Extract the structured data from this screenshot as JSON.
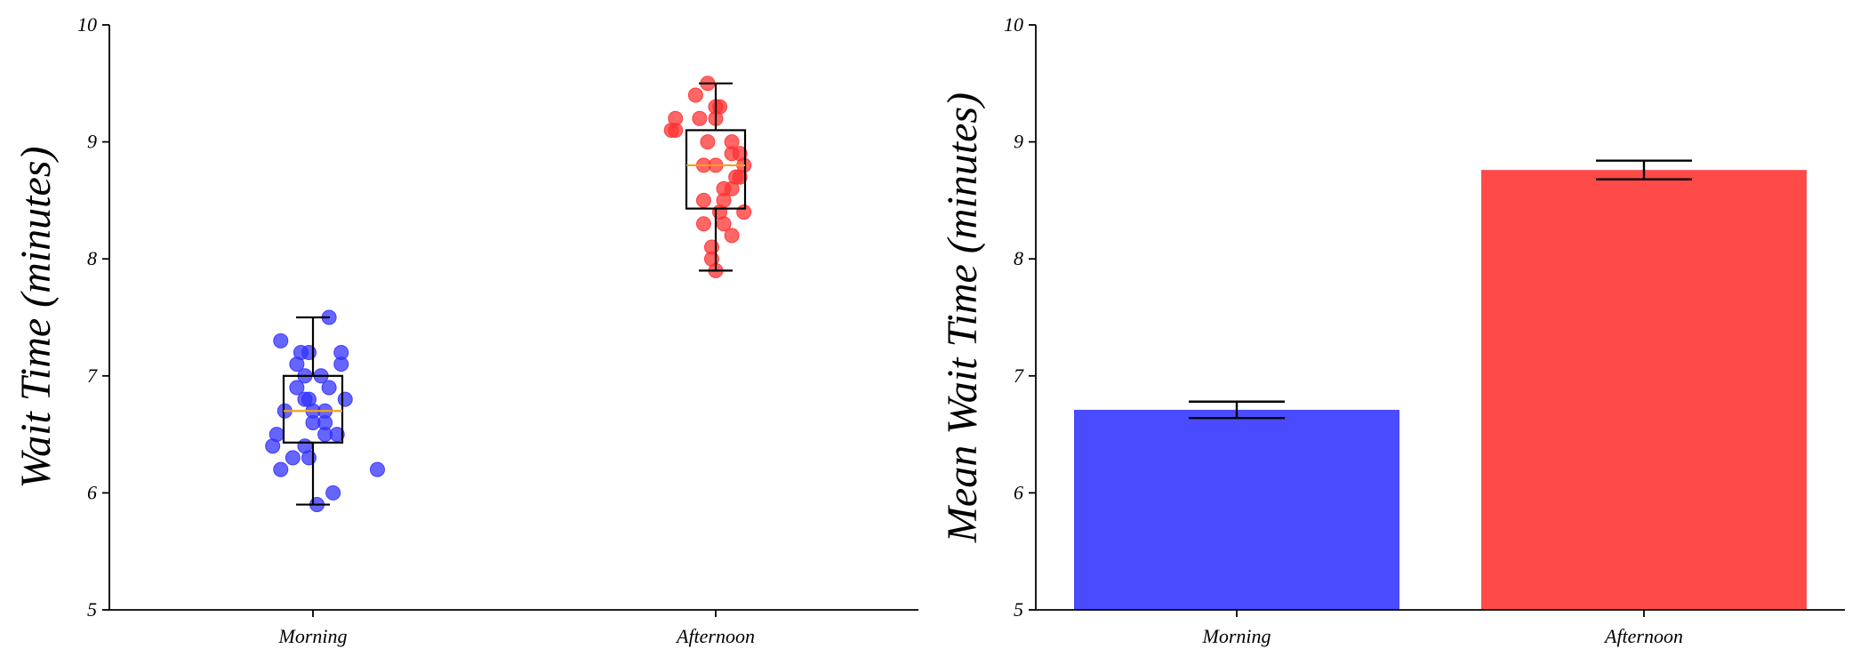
{
  "chart_data": [
    {
      "type": "box+strip",
      "ylabel": "Wait Time (minutes)",
      "ylim": [
        5,
        10
      ],
      "yticks": [
        5,
        6,
        7,
        8,
        9,
        10
      ],
      "categories": [
        "Morning",
        "Afternoon"
      ],
      "colors": {
        "Morning": "#3333ff",
        "Afternoon": "#ff3333",
        "median": "#f5a21b"
      },
      "series": [
        {
          "category": "Morning",
          "box": {
            "whisker_low": 5.9,
            "q1": 6.43,
            "median": 6.7,
            "q3": 7.0,
            "whisker_high": 7.5
          },
          "points": [
            {
              "jitter": 0.04,
              "y": 7.5
            },
            {
              "jitter": -0.08,
              "y": 7.3
            },
            {
              "jitter": -0.03,
              "y": 7.2
            },
            {
              "jitter": -0.01,
              "y": 7.2
            },
            {
              "jitter": 0.07,
              "y": 7.2
            },
            {
              "jitter": -0.04,
              "y": 7.1
            },
            {
              "jitter": 0.07,
              "y": 7.1
            },
            {
              "jitter": -0.02,
              "y": 7.0
            },
            {
              "jitter": 0.02,
              "y": 7.0
            },
            {
              "jitter": -0.04,
              "y": 6.9
            },
            {
              "jitter": 0.04,
              "y": 6.9
            },
            {
              "jitter": -0.02,
              "y": 6.8
            },
            {
              "jitter": -0.01,
              "y": 6.8
            },
            {
              "jitter": 0.08,
              "y": 6.8
            },
            {
              "jitter": -0.07,
              "y": 6.7
            },
            {
              "jitter": 0.0,
              "y": 6.7
            },
            {
              "jitter": 0.03,
              "y": 6.7
            },
            {
              "jitter": 0.0,
              "y": 6.6
            },
            {
              "jitter": 0.03,
              "y": 6.6
            },
            {
              "jitter": -0.09,
              "y": 6.5
            },
            {
              "jitter": 0.03,
              "y": 6.5
            },
            {
              "jitter": 0.06,
              "y": 6.5
            },
            {
              "jitter": -0.1,
              "y": 6.4
            },
            {
              "jitter": -0.02,
              "y": 6.4
            },
            {
              "jitter": -0.05,
              "y": 6.3
            },
            {
              "jitter": -0.01,
              "y": 6.3
            },
            {
              "jitter": -0.08,
              "y": 6.2
            },
            {
              "jitter": 0.16,
              "y": 6.2
            },
            {
              "jitter": 0.05,
              "y": 6.0
            },
            {
              "jitter": 0.01,
              "y": 5.9
            }
          ]
        },
        {
          "category": "Afternoon",
          "box": {
            "whisker_low": 7.9,
            "q1": 8.43,
            "median": 8.8,
            "q3": 9.1,
            "whisker_high": 9.5
          },
          "points": [
            {
              "jitter": -0.02,
              "y": 9.5
            },
            {
              "jitter": -0.05,
              "y": 9.4
            },
            {
              "jitter": 0.0,
              "y": 9.3
            },
            {
              "jitter": 0.01,
              "y": 9.3
            },
            {
              "jitter": -0.1,
              "y": 9.2
            },
            {
              "jitter": -0.04,
              "y": 9.2
            },
            {
              "jitter": 0.0,
              "y": 9.2
            },
            {
              "jitter": -0.1,
              "y": 9.1
            },
            {
              "jitter": -0.11,
              "y": 9.1
            },
            {
              "jitter": -0.02,
              "y": 9.0
            },
            {
              "jitter": 0.04,
              "y": 9.0
            },
            {
              "jitter": 0.04,
              "y": 8.9
            },
            {
              "jitter": 0.06,
              "y": 8.9
            },
            {
              "jitter": -0.03,
              "y": 8.8
            },
            {
              "jitter": 0.0,
              "y": 8.8
            },
            {
              "jitter": 0.07,
              "y": 8.8
            },
            {
              "jitter": 0.05,
              "y": 8.7
            },
            {
              "jitter": 0.06,
              "y": 8.7
            },
            {
              "jitter": 0.02,
              "y": 8.6
            },
            {
              "jitter": 0.04,
              "y": 8.6
            },
            {
              "jitter": -0.03,
              "y": 8.5
            },
            {
              "jitter": 0.02,
              "y": 8.5
            },
            {
              "jitter": 0.07,
              "y": 8.4
            },
            {
              "jitter": 0.01,
              "y": 8.4
            },
            {
              "jitter": -0.03,
              "y": 8.3
            },
            {
              "jitter": 0.02,
              "y": 8.3
            },
            {
              "jitter": 0.04,
              "y": 8.2
            },
            {
              "jitter": -0.01,
              "y": 8.1
            },
            {
              "jitter": -0.01,
              "y": 8.0
            },
            {
              "jitter": 0.0,
              "y": 7.9
            }
          ]
        }
      ]
    },
    {
      "type": "bar",
      "ylabel": "Mean Wait Time (minutes)",
      "ylim": [
        5,
        10
      ],
      "yticks": [
        5,
        6,
        7,
        8,
        9,
        10
      ],
      "categories": [
        "Morning",
        "Afternoon"
      ],
      "values": [
        6.71,
        8.76
      ],
      "errors": [
        0.07,
        0.08
      ],
      "colors": {
        "Morning": "#4a4aff",
        "Afternoon": "#ff4a4a"
      }
    }
  ]
}
